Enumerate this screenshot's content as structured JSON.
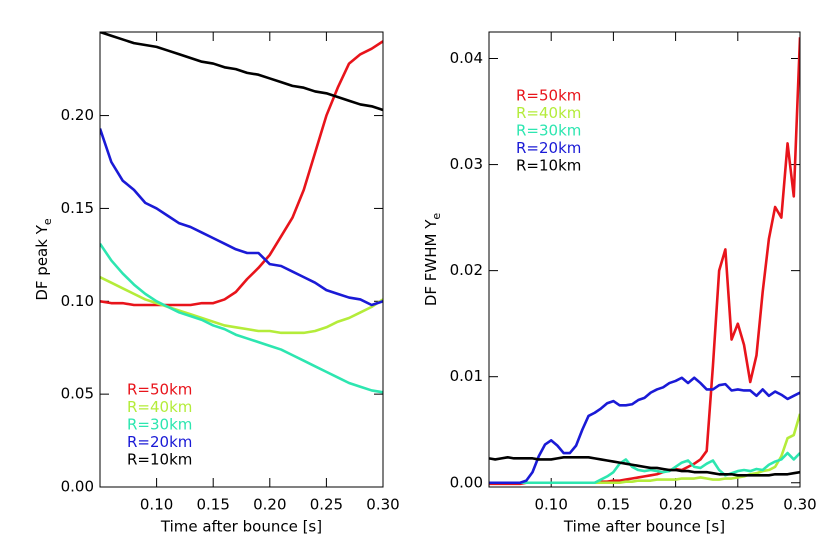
{
  "chart_data": [
    {
      "type": "line",
      "xlabel": "Time after bounce [s]",
      "ylabel": {
        "text": "DF peak Y",
        "subscript": "e"
      },
      "xlim": [
        0.05,
        0.3
      ],
      "ylim": [
        0,
        0.245
      ],
      "xticks": [
        {
          "value": 0.1,
          "label": "0.10"
        },
        0.15,
        {
          "value": 0.2,
          "label": "0.20"
        },
        0.25,
        {
          "value": 0.3,
          "label": "0.30"
        }
      ],
      "yticks": [
        {
          "value": 0,
          "label": "0.00"
        },
        0.05,
        {
          "value": 0.1,
          "label": "0.10"
        },
        0.15,
        {
          "value": 0.2,
          "label": "0.20"
        }
      ],
      "legend": "lower left",
      "x": [
        0.05,
        0.06,
        0.07,
        0.08,
        0.09,
        0.1,
        0.11,
        0.12,
        0.13,
        0.14,
        0.15,
        0.16,
        0.17,
        0.18,
        0.19,
        0.2,
        0.21,
        0.22,
        0.23,
        0.24,
        0.25,
        0.26,
        0.27,
        0.28,
        0.29,
        0.3
      ],
      "series": [
        {
          "name": "R=50km",
          "color": "#e8141b",
          "values": [
            0.1,
            0.099,
            0.099,
            0.098,
            0.098,
            0.098,
            0.098,
            0.098,
            0.098,
            0.099,
            0.099,
            0.101,
            0.105,
            0.112,
            0.118,
            0.125,
            0.135,
            0.145,
            0.16,
            0.18,
            0.2,
            0.215,
            0.228,
            0.233,
            0.236,
            0.24
          ]
        },
        {
          "name": "R=40km",
          "color": "#b4ec3a",
          "values": [
            0.113,
            0.11,
            0.107,
            0.104,
            0.101,
            0.099,
            0.097,
            0.095,
            0.093,
            0.091,
            0.089,
            0.087,
            0.086,
            0.085,
            0.084,
            0.084,
            0.083,
            0.083,
            0.083,
            0.084,
            0.086,
            0.089,
            0.091,
            0.094,
            0.097,
            0.101
          ]
        },
        {
          "name": "R=30km",
          "color": "#2de6b0",
          "values": [
            0.131,
            0.122,
            0.115,
            0.109,
            0.104,
            0.1,
            0.097,
            0.094,
            0.092,
            0.09,
            0.087,
            0.085,
            0.082,
            0.08,
            0.078,
            0.076,
            0.074,
            0.071,
            0.068,
            0.065,
            0.062,
            0.059,
            0.056,
            0.054,
            0.052,
            0.051
          ]
        },
        {
          "name": "R=20km",
          "color": "#1a1ad6",
          "values": [
            0.193,
            0.175,
            0.165,
            0.16,
            0.153,
            0.15,
            0.146,
            0.142,
            0.14,
            0.137,
            0.134,
            0.131,
            0.128,
            0.126,
            0.126,
            0.12,
            0.119,
            0.116,
            0.113,
            0.11,
            0.106,
            0.104,
            0.102,
            0.101,
            0.098,
            0.1
          ]
        },
        {
          "name": "R=10km",
          "color": "#000000",
          "values": [
            0.245,
            0.243,
            0.241,
            0.239,
            0.238,
            0.237,
            0.235,
            0.233,
            0.231,
            0.229,
            0.228,
            0.226,
            0.225,
            0.223,
            0.222,
            0.22,
            0.218,
            0.216,
            0.215,
            0.213,
            0.212,
            0.21,
            0.208,
            0.206,
            0.205,
            0.203
          ]
        }
      ]
    },
    {
      "type": "line",
      "xlabel": "Time after bounce [s]",
      "ylabel": {
        "text": "DF FWHM Y",
        "subscript": "e"
      },
      "xlim": [
        0.05,
        0.3
      ],
      "ylim": [
        -0.0004,
        0.0425
      ],
      "xticks": [
        {
          "value": 0.1,
          "label": "0.10"
        },
        0.15,
        {
          "value": 0.2,
          "label": "0.20"
        },
        0.25,
        {
          "value": 0.3,
          "label": "0.30"
        }
      ],
      "yticks": [
        {
          "value": 0,
          "label": "0.00"
        },
        0.01,
        0.02,
        0.03,
        0.04
      ],
      "legend": "upper left",
      "x": [
        0.05,
        0.055,
        0.06,
        0.065,
        0.07,
        0.075,
        0.08,
        0.085,
        0.09,
        0.095,
        0.1,
        0.105,
        0.11,
        0.115,
        0.12,
        0.125,
        0.13,
        0.135,
        0.14,
        0.145,
        0.15,
        0.155,
        0.16,
        0.165,
        0.17,
        0.175,
        0.18,
        0.185,
        0.19,
        0.195,
        0.2,
        0.205,
        0.21,
        0.215,
        0.22,
        0.225,
        0.23,
        0.235,
        0.24,
        0.245,
        0.25,
        0.255,
        0.26,
        0.265,
        0.27,
        0.275,
        0.28,
        0.285,
        0.29,
        0.295,
        0.3
      ],
      "series": [
        {
          "name": "R=50km",
          "color": "#e8141b",
          "values": [
            -0.0001,
            -0.0001,
            -0.0001,
            -0.0001,
            -0.0001,
            -0.0001,
            0,
            0,
            0,
            0,
            0,
            0,
            0,
            0,
            0,
            0,
            0,
            0,
            0.0001,
            0.0001,
            0.0002,
            0.0002,
            0.0003,
            0.0004,
            0.0005,
            0.0006,
            0.0007,
            0.0008,
            0.001,
            0.0012,
            0.0013,
            0.0012,
            0.0015,
            0.0018,
            0.0022,
            0.003,
            0.011,
            0.02,
            0.022,
            0.0135,
            0.015,
            0.013,
            0.0095,
            0.012,
            0.018,
            0.023,
            0.026,
            0.025,
            0.032,
            0.027,
            0.042
          ]
        },
        {
          "name": "R=40km",
          "color": "#b4ec3a",
          "values": [
            0,
            0,
            0,
            0,
            0,
            0,
            0,
            0,
            0,
            0,
            0,
            0,
            0,
            0,
            0,
            0,
            0,
            0,
            0,
            0,
            0,
            0,
            0.0001,
            0.0001,
            0.0002,
            0.0002,
            0.0002,
            0.0003,
            0.0003,
            0.0003,
            0.0003,
            0.0004,
            0.0004,
            0.0004,
            0.0005,
            0.0004,
            0.0003,
            0.0003,
            0.0004,
            0.0004,
            0.0005,
            0.0006,
            0.0008,
            0.0009,
            0.0011,
            0.0012,
            0.0015,
            0.0025,
            0.0042,
            0.0045,
            0.0065
          ]
        },
        {
          "name": "R=30km",
          "color": "#2de6b0",
          "values": [
            0,
            0,
            0,
            0,
            0,
            0,
            0,
            0,
            0,
            0,
            0,
            0,
            0,
            0,
            0,
            0,
            0,
            0,
            0.0003,
            0.0006,
            0.001,
            0.0018,
            0.0022,
            0.0015,
            0.0012,
            0.0011,
            0.0012,
            0.0011,
            0.001,
            0.0011,
            0.0015,
            0.0019,
            0.0021,
            0.0015,
            0.0014,
            0.0018,
            0.0021,
            0.0012,
            0.0007,
            0.0009,
            0.0011,
            0.0012,
            0.0011,
            0.0013,
            0.0012,
            0.0017,
            0.002,
            0.0022,
            0.0028,
            0.0022,
            0.0028
          ]
        },
        {
          "name": "R=20km",
          "color": "#1a1ad6",
          "values": [
            0,
            0,
            0,
            0,
            0,
            0,
            0.0002,
            0.001,
            0.0025,
            0.0036,
            0.004,
            0.0035,
            0.0028,
            0.0028,
            0.0035,
            0.005,
            0.0063,
            0.0066,
            0.007,
            0.0075,
            0.0077,
            0.0073,
            0.0073,
            0.0074,
            0.0078,
            0.008,
            0.0085,
            0.0088,
            0.009,
            0.0094,
            0.0096,
            0.0099,
            0.0094,
            0.0099,
            0.0094,
            0.0088,
            0.0088,
            0.0092,
            0.0093,
            0.0087,
            0.0088,
            0.0087,
            0.0087,
            0.0082,
            0.0088,
            0.0082,
            0.0086,
            0.0083,
            0.0079,
            0.0082,
            0.0085
          ]
        },
        {
          "name": "R=10km",
          "color": "#000000",
          "values": [
            0.0023,
            0.0022,
            0.0023,
            0.0024,
            0.0023,
            0.0023,
            0.0023,
            0.0023,
            0.0022,
            0.0022,
            0.0022,
            0.0023,
            0.0024,
            0.0024,
            0.0024,
            0.0024,
            0.0024,
            0.0023,
            0.0022,
            0.0021,
            0.002,
            0.0019,
            0.0018,
            0.0017,
            0.0016,
            0.0015,
            0.0014,
            0.0014,
            0.0013,
            0.0012,
            0.0012,
            0.0011,
            0.0011,
            0.001,
            0.001,
            0.001,
            0.0009,
            0.0008,
            0.0008,
            0.0008,
            0.0007,
            0.0007,
            0.0007,
            0.0007,
            0.0007,
            0.0007,
            0.0008,
            0.0008,
            0.0008,
            0.0009,
            0.001
          ]
        }
      ]
    }
  ]
}
